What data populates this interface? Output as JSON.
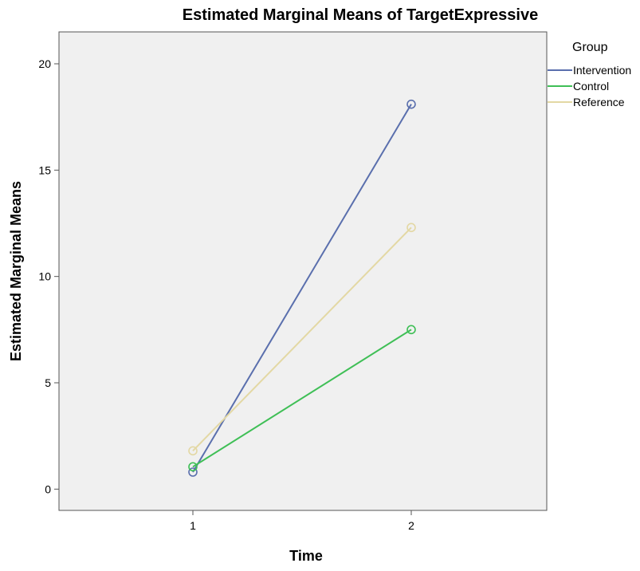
{
  "chart_data": {
    "type": "line",
    "title": "Estimated Marginal Means of TargetExpressive",
    "xlabel": "Time",
    "ylabel": "Estimated Marginal Means",
    "categories": [
      "1",
      "2"
    ],
    "ylim": [
      -1,
      21.5
    ],
    "yticks": [
      0,
      5,
      10,
      15,
      20
    ],
    "grid": false,
    "legend": {
      "title": "Group",
      "placement": "right"
    },
    "series": [
      {
        "name": "Intervention",
        "values": [
          0.8,
          18.1
        ],
        "color": "#5a6fad"
      },
      {
        "name": "Control",
        "values": [
          1.05,
          7.5
        ],
        "color": "#3fbf56"
      },
      {
        "name": "Reference",
        "values": [
          1.8,
          12.3
        ],
        "color": "#e3d8a4"
      }
    ],
    "plot_background": "#f0f0f0"
  }
}
